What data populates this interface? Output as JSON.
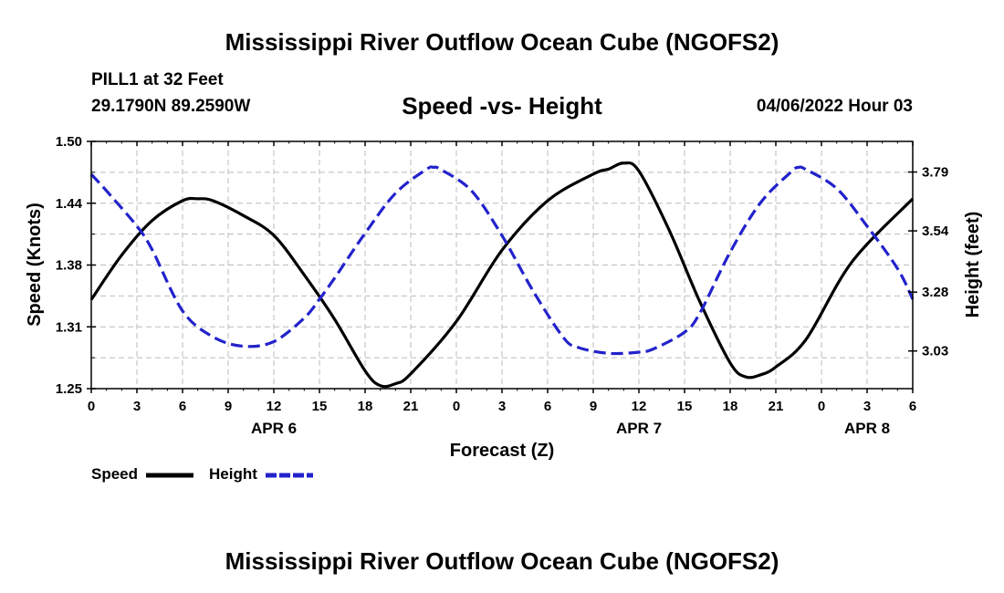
{
  "page_title": "Mississippi River Outflow Ocean Cube (NGOFS2)",
  "footer_title": "Mississippi River Outflow Ocean Cube (NGOFS2)",
  "station": {
    "name": "PILL1 at 32 Feet",
    "coords": "29.1790N  89.2590W",
    "forecast_time": "04/06/2022 Hour 03"
  },
  "chart_data": {
    "type": "line",
    "title": "Speed -vs- Height",
    "xlabel": "Forecast (Z)",
    "ylabel_left": "Speed (Knots)",
    "ylabel_right": "Height (feet)",
    "x_range_hours": [
      0,
      54
    ],
    "x_tick_step_hours": 3,
    "x_tick_labels": [
      "0",
      "3",
      "6",
      "9",
      "12",
      "15",
      "18",
      "21",
      "0",
      "3",
      "6",
      "9",
      "12",
      "15",
      "18",
      "21",
      "0",
      "3",
      "6"
    ],
    "date_labels": [
      {
        "label": "APR 6",
        "hour": 12
      },
      {
        "label": "APR 7",
        "hour": 36
      },
      {
        "label": "APR 8",
        "hour": 51
      }
    ],
    "y_left": {
      "range": [
        1.25,
        1.5
      ],
      "ticks": [
        "1.25",
        "1.31",
        "1.38",
        "1.44",
        "1.50"
      ],
      "tick_values": [
        1.25,
        1.3125,
        1.375,
        1.4375,
        1.5
      ]
    },
    "y_right": {
      "range": [
        2.87,
        3.92
      ],
      "ticks": [
        "3.03",
        "3.28",
        "3.54",
        "3.79"
      ],
      "tick_values": [
        3.03,
        3.28,
        3.54,
        3.79
      ]
    },
    "grid": true,
    "series": [
      {
        "name": "Speed",
        "axis": "left",
        "color": "#000000",
        "dash": "solid",
        "x": [
          0,
          2,
          4,
          6,
          7,
          8,
          10,
          12,
          14,
          16,
          18,
          19,
          20,
          21,
          24,
          27,
          30,
          33,
          34,
          35,
          36,
          38,
          40,
          42,
          43,
          44,
          45,
          47,
          50,
          54
        ],
        "values": [
          1.34,
          1.385,
          1.42,
          1.44,
          1.442,
          1.44,
          1.425,
          1.405,
          1.365,
          1.32,
          1.268,
          1.253,
          1.255,
          1.265,
          1.318,
          1.39,
          1.44,
          1.467,
          1.472,
          1.478,
          1.47,
          1.41,
          1.338,
          1.276,
          1.262,
          1.264,
          1.272,
          1.3,
          1.378,
          1.442
        ]
      },
      {
        "name": "Height",
        "axis": "right",
        "color": "#2222cc",
        "dash": "dashed",
        "x": [
          0,
          1,
          3,
          4,
          6,
          8,
          10,
          12,
          14,
          15,
          16,
          18,
          20,
          22,
          22.5,
          23,
          25,
          27,
          29,
          31,
          32,
          34,
          36,
          37,
          39,
          40,
          42,
          44,
          46,
          46.5,
          47,
          49,
          51,
          53,
          54
        ],
        "values": [
          3.78,
          3.71,
          3.56,
          3.46,
          3.2,
          3.09,
          3.05,
          3.07,
          3.17,
          3.25,
          3.34,
          3.53,
          3.7,
          3.8,
          3.81,
          3.8,
          3.71,
          3.52,
          3.29,
          3.09,
          3.045,
          3.02,
          3.025,
          3.04,
          3.11,
          3.19,
          3.45,
          3.66,
          3.79,
          3.81,
          3.8,
          3.72,
          3.56,
          3.38,
          3.25
        ]
      }
    ],
    "legend": [
      {
        "label": "Speed",
        "color": "#000000",
        "dash": "solid"
      },
      {
        "label": "Height",
        "color": "#2222cc",
        "dash": "dashed"
      }
    ],
    "legend_position": "bottom-left"
  }
}
